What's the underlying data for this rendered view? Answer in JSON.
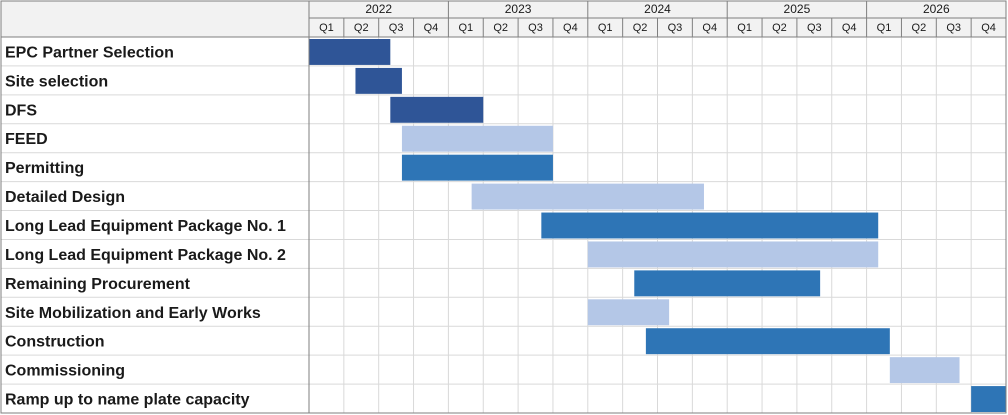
{
  "chart_data": {
    "type": "bar",
    "orientation": "horizontal-gantt",
    "title": "",
    "years": [
      "2022",
      "2023",
      "2024",
      "2025",
      "2026"
    ],
    "quarters": [
      "Q1",
      "Q2",
      "Q3",
      "Q4"
    ],
    "x_range": [
      "2022-01",
      "2026-12"
    ],
    "grid": true,
    "colors": {
      "dark_navy": "#2f5597",
      "medium_blue": "#2e75b6",
      "light_blue": "#b4c7e7",
      "header_fill": "#f2f2f2",
      "grid_line": "#d9d9d9",
      "border": "#7f7f7f"
    },
    "tasks": [
      {
        "name": "EPC Partner Selection",
        "start": "2022-01",
        "end": "2022-07",
        "color": "dark_navy"
      },
      {
        "name": "Site selection",
        "start": "2022-05",
        "end": "2022-08",
        "color": "dark_navy"
      },
      {
        "name": "DFS",
        "start": "2022-08",
        "end": "2023-03",
        "color": "dark_navy"
      },
      {
        "name": "FEED",
        "start": "2022-09",
        "end": "2023-09",
        "color": "light_blue"
      },
      {
        "name": "Permitting",
        "start": "2022-09",
        "end": "2023-09",
        "color": "medium_blue"
      },
      {
        "name": "Detailed Design",
        "start": "2023-03",
        "end": "2024-10",
        "color": "light_blue"
      },
      {
        "name": "Long Lead Equipment Package No. 1",
        "start": "2023-09",
        "end": "2026-01",
        "color": "medium_blue"
      },
      {
        "name": "Long Lead Equipment Package No. 2",
        "start": "2024-01",
        "end": "2026-01",
        "color": "light_blue"
      },
      {
        "name": "Remaining Procurement",
        "start": "2024-05",
        "end": "2025-08",
        "color": "medium_blue"
      },
      {
        "name": "Site Mobilization and Early Works",
        "start": "2024-01",
        "end": "2024-07",
        "color": "light_blue"
      },
      {
        "name": "Construction",
        "start": "2024-06",
        "end": "2026-02",
        "color": "medium_blue"
      },
      {
        "name": "Commissioning",
        "start": "2026-03",
        "end": "2026-08",
        "color": "light_blue"
      },
      {
        "name": "Ramp up to name plate capacity",
        "start": "2026-10",
        "end": "2026-12",
        "color": "medium_blue"
      }
    ]
  }
}
